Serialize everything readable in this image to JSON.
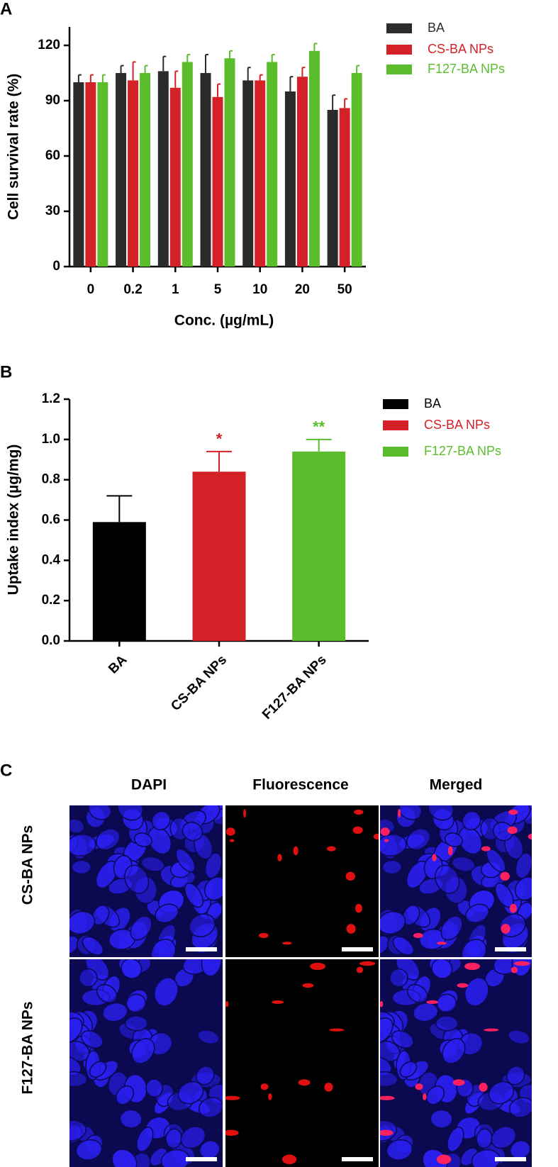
{
  "chart_data": [
    {
      "type": "bar",
      "panel_label": "A",
      "x_label": "Conc. (µg/mL)",
      "y_label": "Cell survival rate (%)",
      "categories": [
        "0",
        "0.2",
        "1",
        "5",
        "10",
        "20",
        "50"
      ],
      "series": [
        {
          "name": "BA",
          "color": "#2b2b2b",
          "values": [
            100,
            105,
            106,
            105,
            101,
            95,
            85
          ],
          "errors": [
            4,
            4,
            8,
            10,
            7,
            8,
            8
          ]
        },
        {
          "name": "CS-BA NPs",
          "color": "#d42027",
          "values": [
            100,
            101,
            97,
            92,
            101,
            103,
            86
          ],
          "errors": [
            4,
            10,
            9,
            7,
            3,
            5,
            5
          ]
        },
        {
          "name": "F127-BA NPs",
          "color": "#5bbd2b",
          "values": [
            100,
            105,
            111,
            113,
            111,
            117,
            105
          ],
          "errors": [
            4,
            4,
            4,
            4,
            4,
            4,
            4
          ]
        }
      ],
      "ylim": [
        0,
        130
      ],
      "yticks": [
        0,
        30,
        60,
        90,
        120
      ],
      "grid": false,
      "legend": "top-right"
    },
    {
      "type": "bar",
      "panel_label": "B",
      "y_label": "Uptake index (µg/mg)",
      "categories": [
        "BA",
        "CS-BA NPs",
        "F127-BA NPs"
      ],
      "series": [
        {
          "name": "BA",
          "color": "#000000",
          "values": [
            0.59,
            null,
            null
          ],
          "errors": [
            0.13,
            null,
            null
          ]
        },
        {
          "name": "CS-BA NPs",
          "color": "#d42027",
          "values": [
            null,
            0.84,
            null
          ],
          "errors": [
            null,
            0.1,
            null
          ],
          "annotation": "*"
        },
        {
          "name": "F127-BA NPs",
          "color": "#5bbd2b",
          "values": [
            null,
            null,
            0.94
          ],
          "errors": [
            null,
            null,
            0.06
          ],
          "annotation": "**"
        }
      ],
      "ylim": [
        0,
        1.2
      ],
      "yticks": [
        {
          "value": 0,
          "label": "0.0"
        },
        0.2,
        0.4,
        0.6,
        0.8,
        {
          "value": 1,
          "label": "1.0"
        },
        1.2
      ],
      "grid": false,
      "legend": "top-right"
    }
  ],
  "image_panel": {
    "panel_label": "C",
    "columns": [
      "DAPI",
      "Fluorescence",
      "Merged"
    ],
    "rows": [
      "CS-BA NPs",
      "F127-BA NPs"
    ]
  }
}
